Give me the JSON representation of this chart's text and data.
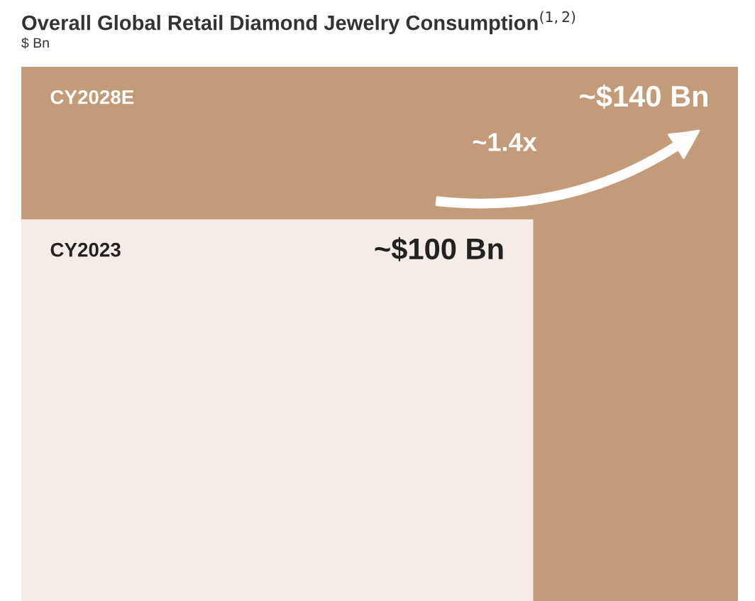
{
  "chart_data": {
    "type": "other",
    "title": "Overall Global Retail Diamond Jewelry Consumption$^{(1,2)}$",
    "subtitle": "$ Bn",
    "categories": [
      "CY2023",
      "CY2028E"
    ],
    "values": [
      100,
      140
    ],
    "value_labels": [
      "~$100 Bn",
      "~$140 Bn"
    ],
    "colors": [
      "#f6ece7",
      "#c49b79"
    ],
    "annotations": [
      "~1.4x"
    ]
  }
}
